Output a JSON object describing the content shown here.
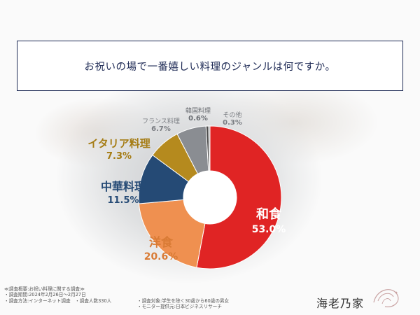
{
  "question": "お祝いの場で一番嬉しい料理のジャンルは何ですか。",
  "chart_data": {
    "type": "pie",
    "donut": true,
    "slices": [
      {
        "label": "和食",
        "value": 53.0,
        "value_text": "53.0%",
        "color": "#e02424"
      },
      {
        "label": "洋食",
        "value": 20.6,
        "value_text": "20.6%",
        "color": "#ef9050"
      },
      {
        "label": "中華料理",
        "value": 11.5,
        "value_text": "11.5%",
        "color": "#254a75"
      },
      {
        "label": "イタリア料理",
        "value": 7.3,
        "value_text": "7.3%",
        "color": "#b58a1e"
      },
      {
        "label": "フランス料理",
        "value": 6.7,
        "value_text": "6.7%",
        "color": "#8a8d92"
      },
      {
        "label": "韓国料理",
        "value": 0.6,
        "value_text": "0.6%",
        "color": "#4b4b4b"
      },
      {
        "label": "その他",
        "value": 0.3,
        "value_text": "0.3%",
        "color": "#9a9a9a"
      }
    ]
  },
  "footnotes": {
    "col1": [
      "≪調査概要:お祝い料理に関する調査≫",
      "・調査期間:2024年2月26日〜2月27日",
      "・調査方法:インターネット調査　・調査人数330人"
    ],
    "col2": [
      "・調査対象:学生を除く30歳から60歳の男女",
      "・モニター提供元:日本ビジネスリサーチ"
    ]
  },
  "logo": "海老乃家"
}
